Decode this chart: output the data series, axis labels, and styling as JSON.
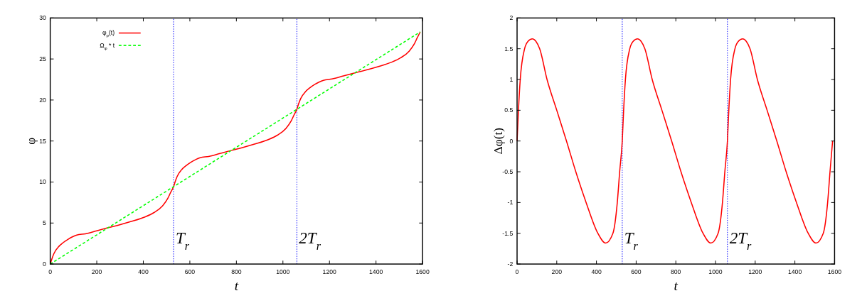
{
  "chart_data": [
    {
      "type": "line",
      "ylabel": "φ",
      "xlabel": "t",
      "xlim": [
        0,
        1600
      ],
      "ylim": [
        0,
        30
      ],
      "xticks": [
        0,
        200,
        400,
        600,
        800,
        1000,
        1200,
        1400,
        1600
      ],
      "yticks": [
        0,
        5,
        10,
        15,
        20,
        25,
        30
      ],
      "legend": "top left",
      "grid": false,
      "series": [
        {
          "name": "φ$_{p}$(t)",
          "color": "#ff0000",
          "line_style": "solid",
          "x": [
            0,
            7,
            16,
            38,
            55,
            77,
            95,
            114,
            151,
            200,
            249,
            296,
            348,
            407,
            446,
            483,
            505,
            517,
            530,
            537,
            546,
            568,
            585,
            607,
            625,
            644,
            681,
            730,
            779,
            826,
            878,
            937,
            976,
            1013,
            1035,
            1047,
            1060,
            1067,
            1076,
            1098,
            1115,
            1137,
            1155,
            1174,
            1211,
            1260,
            1309,
            1356,
            1408,
            1467,
            1506,
            1543,
            1565,
            1577,
            1590
          ],
          "values": [
            0,
            0.62,
            1.28,
            2.18,
            2.6,
            3.03,
            3.31,
            3.53,
            3.69,
            4.06,
            4.43,
            4.77,
            5.19,
            5.74,
            6.28,
            7.1,
            7.99,
            8.7,
            9.43,
            10.05,
            10.71,
            11.61,
            12.03,
            12.46,
            12.74,
            12.96,
            13.12,
            13.49,
            13.86,
            14.2,
            14.62,
            15.17,
            15.71,
            16.53,
            17.42,
            18.13,
            18.87,
            19.49,
            20.15,
            21.05,
            21.47,
            21.9,
            22.18,
            22.4,
            22.56,
            22.93,
            23.3,
            23.64,
            24.06,
            24.61,
            25.15,
            25.97,
            26.86,
            27.57,
            28.3
          ]
        },
        {
          "name": "Ω$_{φ}$ * t",
          "color": "#00ff00",
          "line_style": "dashed",
          "x": [
            0,
            1590
          ],
          "values": [
            0,
            28.3
          ]
        }
      ],
      "ref_lines": [
        {
          "axis": "x",
          "value": 530,
          "label": "T$_{r}$",
          "color": "#0000ff",
          "line_style": "dotted"
        },
        {
          "axis": "x",
          "value": 1060,
          "label": "2T$_{r}$",
          "color": "#0000ff",
          "line_style": "dotted"
        }
      ]
    },
    {
      "type": "line",
      "ylabel": "Δφ(t)",
      "xlabel": "t",
      "xlim": [
        0,
        1600
      ],
      "ylim": [
        -2,
        2
      ],
      "xticks": [
        0,
        200,
        400,
        600,
        800,
        1000,
        1200,
        1400,
        1600
      ],
      "yticks": [
        -2,
        -1.5,
        -1,
        -0.5,
        0,
        0.5,
        1,
        1.5,
        2
      ],
      "legend": false,
      "grid": false,
      "series": [
        {
          "color": "#ff0000",
          "line_style": "solid",
          "x": [
            0,
            7,
            16,
            38,
            55,
            77,
            95,
            114,
            151,
            200,
            249,
            296,
            348,
            407,
            446,
            483,
            505,
            517,
            530,
            537,
            546,
            568,
            585,
            607,
            625,
            644,
            681,
            730,
            779,
            826,
            878,
            937,
            976,
            1013,
            1035,
            1047,
            1060,
            1067,
            1076,
            1098,
            1115,
            1137,
            1155,
            1174,
            1211,
            1260,
            1309,
            1356,
            1408,
            1467,
            1506,
            1543,
            1565,
            1577,
            1590
          ],
          "values": [
            0,
            0.5,
            1,
            1.5,
            1.62,
            1.66,
            1.62,
            1.5,
            1,
            0.5,
            0,
            -0.5,
            -1,
            -1.5,
            -1.66,
            -1.5,
            -1,
            -0.5,
            0,
            0.5,
            1,
            1.5,
            1.62,
            1.66,
            1.62,
            1.5,
            1,
            0.5,
            0,
            -0.5,
            -1,
            -1.5,
            -1.66,
            -1.5,
            -1,
            -0.5,
            0,
            0.5,
            1,
            1.5,
            1.62,
            1.66,
            1.62,
            1.5,
            1,
            0.5,
            0,
            -0.5,
            -1,
            -1.5,
            -1.66,
            -1.5,
            -1,
            -0.5,
            0
          ]
        }
      ],
      "ref_lines": [
        {
          "axis": "x",
          "value": 530,
          "label": "T$_{r}$",
          "color": "#0000ff",
          "line_style": "dotted"
        },
        {
          "axis": "x",
          "value": 1060,
          "label": "2T$_{r}$",
          "color": "#0000ff",
          "line_style": "dotted"
        }
      ]
    }
  ]
}
